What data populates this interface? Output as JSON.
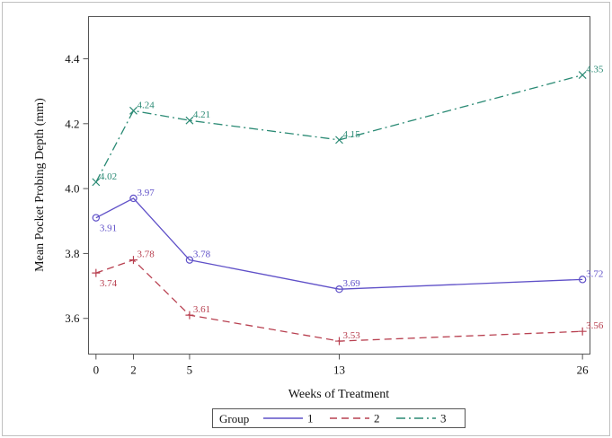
{
  "chart_data": {
    "type": "line",
    "xlabel": "Weeks of Treatment",
    "ylabel": "Mean Pocket Probing Depth (mm)",
    "x": [
      0,
      2,
      5,
      13,
      26
    ],
    "x_ticks": [
      "0",
      "2",
      "5",
      "13",
      "26"
    ],
    "y_ticks": [
      "3.6",
      "3.8",
      "4.0",
      "4.2",
      "4.4"
    ],
    "xlim": [
      -0.4,
      26.4
    ],
    "ylim": [
      3.49,
      4.53
    ],
    "grid": false,
    "legend_title": "Group",
    "legend_position": "bottom",
    "series": [
      {
        "name": "1",
        "color": "#5f50c8",
        "line_style": "solid",
        "marker": "circle",
        "values": [
          3.91,
          3.97,
          3.78,
          3.69,
          3.72
        ],
        "labels": [
          "3.91",
          "3.97",
          "3.78",
          "3.69",
          "3.72"
        ],
        "label_sides": [
          "below",
          "above",
          "above",
          "above",
          "above"
        ]
      },
      {
        "name": "2",
        "color": "#b84050",
        "line_style": "dashed",
        "marker": "plus",
        "values": [
          3.74,
          3.78,
          3.61,
          3.53,
          3.56
        ],
        "labels": [
          "3.74",
          "3.78",
          "3.61",
          "3.53",
          "3.56"
        ],
        "label_sides": [
          "below",
          "above",
          "above",
          "above",
          "above"
        ]
      },
      {
        "name": "3",
        "color": "#2a8a74",
        "line_style": "dashdot",
        "marker": "x",
        "values": [
          4.02,
          4.24,
          4.21,
          4.15,
          4.35
        ],
        "labels": [
          "4.02",
          "4.24",
          "4.21",
          "4.15",
          "4.35"
        ],
        "label_sides": [
          "above",
          "above",
          "above",
          "above",
          "above"
        ]
      }
    ]
  }
}
